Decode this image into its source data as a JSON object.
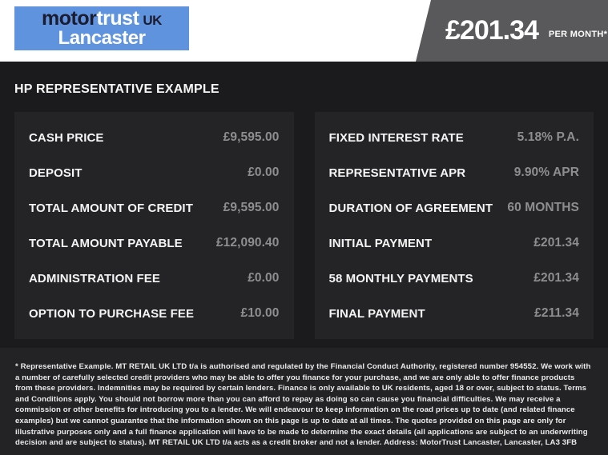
{
  "header": {
    "logo": {
      "part_motor": "motor",
      "part_trust": "trust",
      "part_uk": "UK",
      "line2": "Lancaster"
    },
    "price": "£201.34",
    "price_suffix": "PER MONTH*"
  },
  "title": "HP REPRESENTATIVE EXAMPLE",
  "finance": {
    "left_rows": [
      {
        "label": "CASH PRICE",
        "value": "£9,595.00"
      },
      {
        "label": "DEPOSIT",
        "value": "£0.00"
      },
      {
        "label": "TOTAL AMOUNT OF CREDIT",
        "value": "£9,595.00"
      },
      {
        "label": "TOTAL AMOUNT PAYABLE",
        "value": "£12,090.40"
      },
      {
        "label": "ADMINISTRATION FEE",
        "value": "£0.00"
      },
      {
        "label": "OPTION TO PURCHASE FEE",
        "value": "£10.00"
      }
    ],
    "right_rows": [
      {
        "label": "FIXED INTEREST RATE",
        "value": "5.18% P.A."
      },
      {
        "label": "REPRESENTATIVE APR",
        "value": "9.90% APR"
      },
      {
        "label": "DURATION OF AGREEMENT",
        "value": "60 MONTHS"
      },
      {
        "label": "INITIAL PAYMENT",
        "value": "£201.34"
      },
      {
        "label": "58 MONTHLY PAYMENTS",
        "value": "£201.34"
      },
      {
        "label": "FINAL PAYMENT",
        "value": "£211.34"
      }
    ]
  },
  "disclaimer": "* Representative Example. MT RETAIL UK LTD t/a is authorised and regulated by the Financial Conduct Authority, registered number 954552. We work with a number of carefully selected credit providers who may be able to offer you finance for your purchase, and we are only able to offer finance products from these providers. Indemnities may be required by certain lenders. Finance is only available to UK residents, aged 18 or over, subject to status. Terms and Conditions apply. You should not borrow more than you can afford to repay as doing so can cause you financial difficulties. We may receive a commission or other benefits for introducing you to a lender. We will endeavour to keep information on the road prices up to date (and related finance examples) but we cannot guarantee that the information shown on this page is up to date at all times. The quotes provided on this page are only for illustrative purposes only and a full finance application will have to be made to determine the exact details (all applications are subject to an underwriting decision and are subject to status). MT RETAIL UK LTD t/a acts as a credit broker and not a lender. Address: MotorTrust Lancaster, Lancaster, LA3 3FB",
  "colors": {
    "page-bg": "#1b1b1d",
    "header-bg": "#ffffff",
    "logo-blue": "#6093dd",
    "logo-navy": "#1c1c30",
    "flag-gray": "#59595b",
    "panel-bg": "#242427",
    "value-gray": "#8e8e90",
    "footer-bg": "#232326"
  }
}
